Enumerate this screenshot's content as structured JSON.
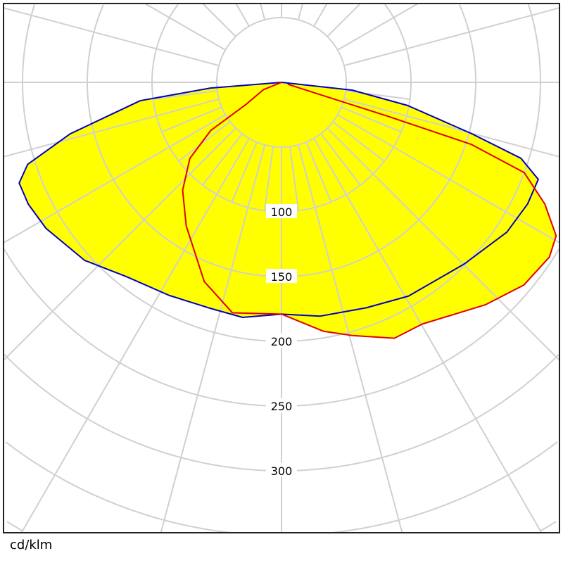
{
  "chart_data": {
    "type": "polar",
    "unit_label": "cd/klm",
    "radial_ticks": [
      50,
      100,
      150,
      200,
      250,
      300,
      350,
      400,
      450
    ],
    "radial_tick_labels": [
      "100",
      "150",
      "200",
      "250",
      "300"
    ],
    "angle_grid_step_deg": 15,
    "angle_reference": "0 deg = nadir (down), positive = right",
    "grid": true,
    "fill_color": "#ffff00",
    "grid_color": "#d0d0d0",
    "series": [
      {
        "color": "#0000c0",
        "points": [
          [
            -90,
            0
          ],
          [
            -85.4,
            55
          ],
          [
            -82.6,
            110
          ],
          [
            -76.3,
            168
          ],
          [
            -72.1,
            206
          ],
          [
            -69,
            217
          ],
          [
            -64.3,
            217
          ],
          [
            -58.2,
            214
          ],
          [
            -47.9,
            205
          ],
          [
            -38.6,
            192
          ],
          [
            -27.8,
            186
          ],
          [
            -17.8,
            183
          ],
          [
            -9.4,
            184
          ],
          [
            0,
            179
          ],
          [
            9.4,
            183
          ],
          [
            20.6,
            186
          ],
          [
            30.7,
            192
          ],
          [
            45.2,
            199
          ],
          [
            56.4,
            209
          ],
          [
            63.7,
            212
          ],
          [
            69.3,
            212
          ],
          [
            72.4,
            194
          ],
          [
            74.9,
            152
          ],
          [
            79.6,
            99
          ],
          [
            83.7,
            55
          ],
          [
            90,
            0
          ]
        ]
      },
      {
        "color": "#e00000",
        "points": [
          [
            -90,
            0
          ],
          [
            -68,
            15
          ],
          [
            -58.2,
            32
          ],
          [
            -55.8,
            66
          ],
          [
            -50.3,
            92
          ],
          [
            -42.5,
            113
          ],
          [
            -33.6,
            133
          ],
          [
            -21.2,
            165
          ],
          [
            -12,
            182
          ],
          [
            0,
            179
          ],
          [
            9.6,
            195
          ],
          [
            15.6,
            203
          ],
          [
            23.8,
            216
          ],
          [
            30.2,
            216
          ],
          [
            42.5,
            233
          ],
          [
            50.1,
            244
          ],
          [
            56.9,
            247
          ],
          [
            60.8,
            243
          ],
          [
            65.2,
            224
          ],
          [
            69.6,
            200
          ],
          [
            71.9,
            154
          ],
          [
            72.3,
            86
          ],
          [
            73,
            5
          ]
        ]
      }
    ]
  }
}
